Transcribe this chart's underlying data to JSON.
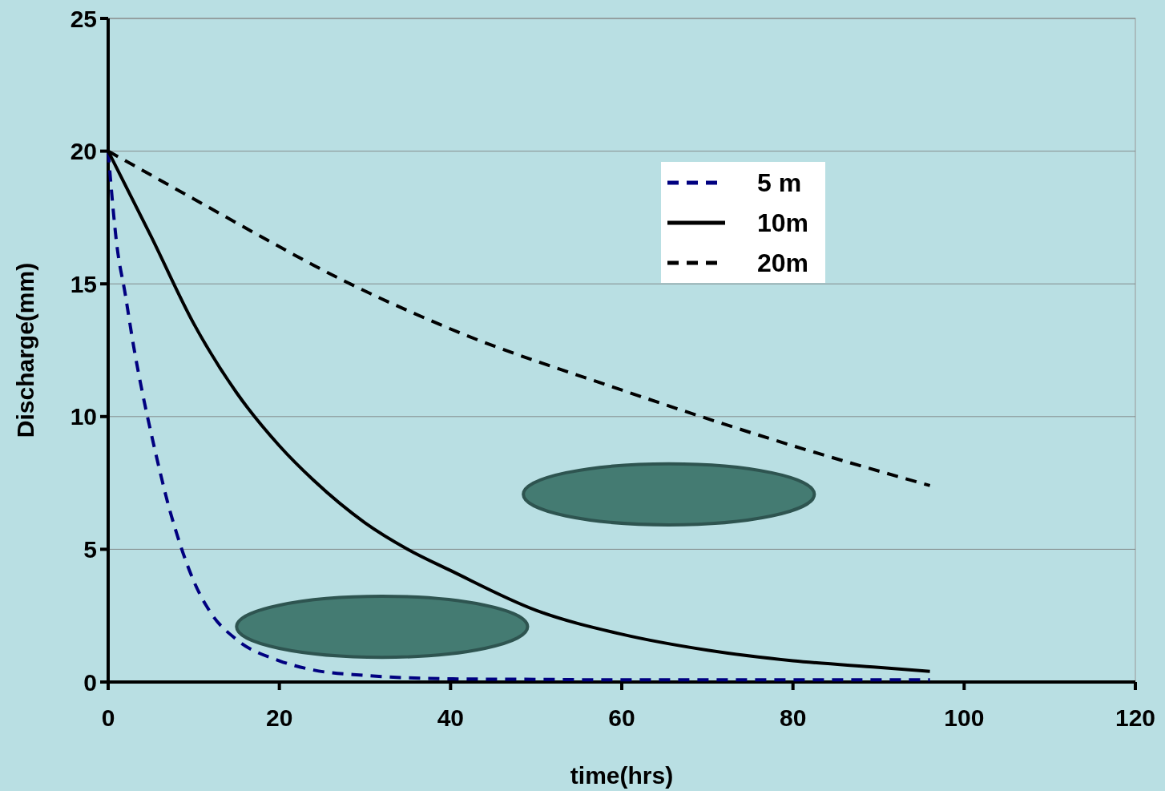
{
  "chart_data": {
    "type": "line",
    "xlabel": "time(hrs)",
    "ylabel": "Discharge(mm)",
    "xlim": [
      0,
      120
    ],
    "xticks": [
      0,
      20,
      40,
      60,
      80,
      100,
      120
    ],
    "ylim": [
      0,
      25
    ],
    "yticks": [
      0,
      5,
      10,
      15,
      20,
      25
    ],
    "grid": "y",
    "legend": "top right",
    "series": [
      {
        "name": "5 m",
        "color": "#000080",
        "line_style": "dashed",
        "x": [
          0,
          1,
          2,
          3,
          4,
          5,
          6,
          7,
          8,
          10,
          12,
          15,
          20,
          24,
          30,
          40,
          50,
          60,
          80,
          96
        ],
        "values": [
          20,
          16.5,
          14.6,
          12.6,
          10.9,
          9.4,
          8,
          6.7,
          5.6,
          3.8,
          2.6,
          1.6,
          0.8,
          0.45,
          0.25,
          0.12,
          0.1,
          0.08,
          0.08,
          0.08
        ]
      },
      {
        "name": "10m",
        "color": "#000000",
        "line_style": "solid",
        "x": [
          0,
          5,
          10,
          15,
          20,
          24,
          30,
          35,
          40,
          50,
          60,
          70,
          80,
          90,
          96
        ],
        "values": [
          20,
          16.8,
          13.5,
          10.9,
          8.9,
          7.6,
          6,
          5,
          4.2,
          2.7,
          1.8,
          1.2,
          0.8,
          0.55,
          0.4
        ]
      },
      {
        "name": "20m",
        "color": "#000000",
        "line_style": "dashed",
        "x": [
          0,
          10,
          20,
          24,
          40,
          60,
          80,
          96
        ],
        "values": [
          20,
          18.2,
          16.4,
          15.7,
          13.3,
          11,
          8.9,
          7.4
        ]
      }
    ]
  }
}
